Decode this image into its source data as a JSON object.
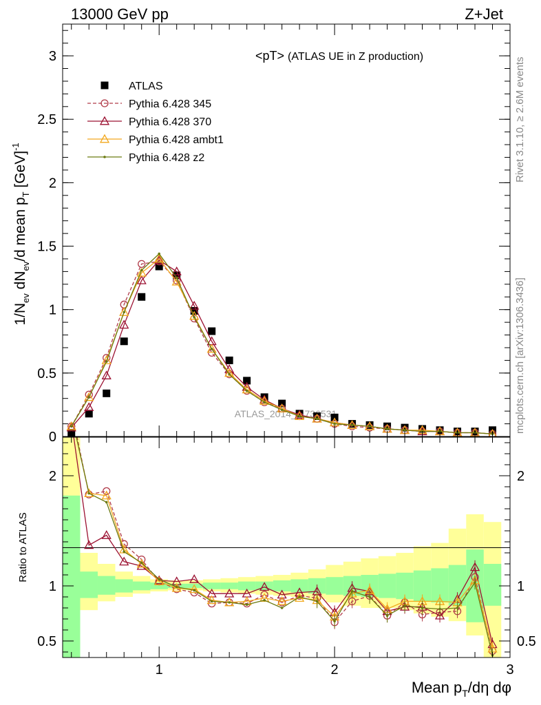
{
  "header": {
    "left": "13000 GeV pp",
    "right": "Z+Jet"
  },
  "side": {
    "top": "Rivet 3.1.10, ≥ 2.6M events",
    "bottom": "mcplots.cern.ch [arXiv:1306.3436]"
  },
  "watermark": "ATLAS_2014_I1736531",
  "chart_data": [
    {
      "type": "scatter",
      "title": "<pT>",
      "subtitle": "(ATLAS UE in Z production)",
      "ylabel": "1/N_ev dN_ev/d mean p_T [GeV]^-1",
      "xlim": [
        0.45,
        3.0
      ],
      "ylim": [
        0,
        3.25
      ],
      "xticks": [
        1,
        2,
        3
      ],
      "yticks": [
        0,
        0.5,
        1,
        1.5,
        2,
        2.5,
        3
      ],
      "legend_position": "top-left",
      "x": [
        0.5,
        0.6,
        0.7,
        0.8,
        0.9,
        1.0,
        1.1,
        1.2,
        1.3,
        1.4,
        1.5,
        1.6,
        1.7,
        1.8,
        1.9,
        2.0,
        2.1,
        2.2,
        2.3,
        2.4,
        2.5,
        2.6,
        2.7,
        2.8,
        2.9
      ],
      "series": [
        {
          "name": "ATLAS",
          "color": "#000000",
          "marker": "square",
          "values": [
            0.03,
            0.18,
            0.34,
            0.75,
            1.1,
            1.34,
            1.27,
            0.99,
            0.83,
            0.6,
            0.44,
            0.31,
            0.26,
            0.18,
            0.16,
            0.15,
            0.1,
            0.09,
            0.08,
            0.07,
            0.06,
            0.05,
            0.04,
            0.04,
            0.05
          ]
        },
        {
          "name": "Pythia 6.428 345",
          "color": "#b03a48",
          "marker": "circle",
          "dashed": true,
          "values": [
            0.08,
            0.33,
            0.62,
            1.04,
            1.36,
            1.38,
            1.23,
            0.93,
            0.66,
            0.49,
            0.36,
            0.27,
            0.22,
            0.16,
            0.14,
            0.1,
            0.08,
            0.07,
            0.06,
            0.05,
            0.04,
            0.04,
            0.03,
            0.03,
            0.02
          ]
        },
        {
          "name": "Pythia 6.428 370",
          "color": "#9b1030",
          "marker": "triangle",
          "dashed": false,
          "values": [
            0.07,
            0.23,
            0.48,
            0.88,
            1.23,
            1.39,
            1.3,
            1.03,
            0.75,
            0.53,
            0.39,
            0.29,
            0.22,
            0.17,
            0.14,
            0.11,
            0.09,
            0.08,
            0.06,
            0.05,
            0.04,
            0.04,
            0.03,
            0.03,
            0.02
          ]
        },
        {
          "name": "Pythia 6.428 ambt1",
          "color": "#f2a81d",
          "marker": "triangle",
          "dashed": false,
          "values": [
            0.08,
            0.31,
            0.6,
            0.98,
            1.29,
            1.4,
            1.22,
            0.95,
            0.69,
            0.5,
            0.37,
            0.28,
            0.22,
            0.16,
            0.14,
            0.11,
            0.09,
            0.08,
            0.06,
            0.05,
            0.05,
            0.04,
            0.03,
            0.03,
            0.02
          ]
        },
        {
          "name": "Pythia 6.428 z2",
          "color": "#6b7a10",
          "marker": "dot",
          "dashed": false,
          "values": [
            0.08,
            0.31,
            0.59,
            0.98,
            1.31,
            1.44,
            1.25,
            0.94,
            0.69,
            0.49,
            0.36,
            0.27,
            0.21,
            0.16,
            0.14,
            0.1,
            0.09,
            0.08,
            0.06,
            0.05,
            0.04,
            0.04,
            0.03,
            0.03,
            0.02
          ]
        }
      ]
    },
    {
      "type": "line",
      "ylabel": "Ratio to ATLAS",
      "xlabel": "Mean p_T/dη dφ",
      "xlim": [
        0.45,
        3.0
      ],
      "ylim": [
        0.35,
        2.35
      ],
      "xticks": [
        1,
        2,
        3
      ],
      "yticks": [
        0.5,
        1,
        2
      ],
      "x": [
        0.5,
        0.6,
        0.7,
        0.8,
        0.9,
        1.0,
        1.1,
        1.2,
        1.3,
        1.4,
        1.5,
        1.6,
        1.7,
        1.8,
        1.9,
        2.0,
        2.1,
        2.2,
        2.3,
        2.4,
        2.5,
        2.6,
        2.7,
        2.8,
        2.9
      ],
      "band_edges": [
        0.45,
        0.55,
        0.65,
        0.75,
        0.85,
        0.95,
        1.05,
        1.15,
        1.25,
        1.35,
        1.45,
        1.55,
        1.65,
        1.75,
        1.85,
        1.95,
        2.05,
        2.15,
        2.25,
        2.35,
        2.45,
        2.55,
        2.65,
        2.75,
        2.85,
        2.95
      ],
      "bands": [
        {
          "name": "yellow",
          "color": "#ffff99",
          "lo": [
            0.35,
            0.78,
            0.86,
            0.9,
            0.93,
            0.95,
            0.96,
            0.96,
            0.95,
            0.94,
            0.93,
            0.92,
            0.91,
            0.9,
            0.88,
            0.85,
            0.82,
            0.8,
            0.8,
            0.78,
            0.75,
            0.72,
            0.68,
            0.55,
            0.35
          ],
          "hi": [
            2.35,
            1.3,
            1.2,
            1.13,
            1.09,
            1.06,
            1.05,
            1.05,
            1.06,
            1.07,
            1.08,
            1.09,
            1.1,
            1.12,
            1.15,
            1.19,
            1.22,
            1.25,
            1.27,
            1.3,
            1.36,
            1.39,
            1.52,
            1.65,
            1.58
          ]
        },
        {
          "name": "green",
          "color": "#99ff99",
          "lo": [
            0.35,
            0.89,
            0.92,
            0.94,
            0.96,
            0.97,
            0.98,
            0.98,
            0.97,
            0.97,
            0.96,
            0.96,
            0.95,
            0.94,
            0.93,
            0.92,
            0.91,
            0.9,
            0.89,
            0.88,
            0.86,
            0.85,
            0.82,
            0.67,
            0.82
          ],
          "hi": [
            1.82,
            1.13,
            1.09,
            1.06,
            1.04,
            1.03,
            1.02,
            1.02,
            1.03,
            1.03,
            1.04,
            1.04,
            1.05,
            1.06,
            1.07,
            1.08,
            1.09,
            1.1,
            1.11,
            1.12,
            1.14,
            1.16,
            1.19,
            1.33,
            1.2
          ]
        }
      ],
      "series": [
        {
          "name": "Pythia 6.428 345",
          "color": "#b03a48",
          "marker": "circle",
          "dashed": true,
          "values": [
            2.6,
            1.83,
            1.86,
            1.38,
            1.24,
            1.04,
            0.97,
            0.94,
            0.84,
            0.85,
            0.84,
            0.92,
            0.85,
            0.91,
            0.89,
            0.67,
            0.86,
            0.91,
            0.73,
            0.85,
            0.74,
            0.76,
            0.77,
            1.08,
            0.41
          ]
        },
        {
          "name": "Pythia 6.428 370",
          "color": "#9b1030",
          "marker": "triangle",
          "dashed": false,
          "values": [
            2.5,
            1.37,
            1.46,
            1.22,
            1.18,
            1.05,
            1.04,
            1.06,
            0.93,
            0.93,
            0.93,
            0.99,
            0.92,
            0.94,
            0.95,
            0.76,
            0.98,
            0.95,
            0.77,
            0.81,
            0.81,
            0.73,
            0.88,
            1.17,
            0.47
          ]
        },
        {
          "name": "Pythia 6.428 ambt1",
          "color": "#f2a81d",
          "marker": "triangle",
          "dashed": false,
          "values": [
            2.55,
            1.84,
            1.82,
            1.33,
            1.2,
            1.04,
            0.98,
            0.97,
            0.87,
            0.85,
            0.86,
            0.89,
            0.86,
            0.89,
            0.87,
            0.72,
            0.93,
            0.96,
            0.79,
            0.86,
            0.86,
            0.86,
            0.85,
            1.05,
            0.43
          ]
        },
        {
          "name": "Pythia 6.428 z2",
          "color": "#6b7a10",
          "marker": "dot",
          "dashed": false,
          "values": [
            2.55,
            1.84,
            1.76,
            1.31,
            1.21,
            1.06,
            0.99,
            0.96,
            0.86,
            0.85,
            0.83,
            0.87,
            0.8,
            0.9,
            0.86,
            0.68,
            0.95,
            0.9,
            0.73,
            0.82,
            0.8,
            0.79,
            0.8,
            1.03,
            0.37
          ]
        }
      ]
    }
  ]
}
